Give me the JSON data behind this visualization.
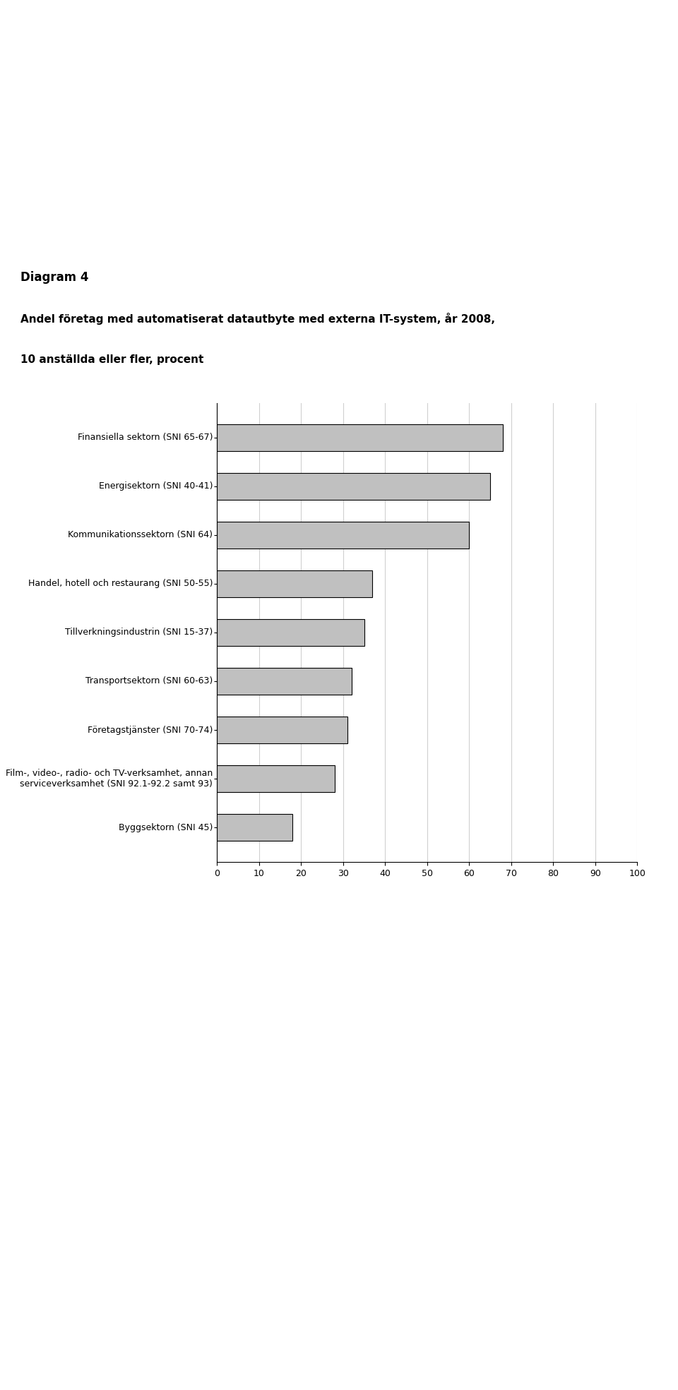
{
  "title_line1": "Diagram 4",
  "title_line2": "Andel företag med automatiserat datautbyte med externa IT-system, år 2008,",
  "title_line3": "10 anställda eller fler, procent",
  "categories": [
    "Finansiella sektorn (SNI 65-67)",
    "Energisektorn (SNI 40-41)",
    "Kommunikationssektorn (SNI 64)",
    "Handel, hotell och restaurang (SNI 50-55)",
    "Tillverkningsindustrin (SNI 15-37)",
    "Transportsektorn (SNI 60-63)",
    "Företagstjänster (SNI 70-74)",
    "Film-, video-, radio- och TV-verksamhet, annan\nserviceverksamhet (SNI 92.1-92.2 samt 93)",
    "Byggsektorn (SNI 45)"
  ],
  "values": [
    68,
    65,
    60,
    37,
    35,
    32,
    31,
    28,
    18
  ],
  "bar_color": "#c0c0c0",
  "bar_edgecolor": "#000000",
  "xlim": [
    0,
    100
  ],
  "xticks": [
    0,
    10,
    20,
    30,
    40,
    50,
    60,
    70,
    80,
    90,
    100
  ],
  "grid_color": "#ffffff",
  "background_color": "#ffffff",
  "plot_bg_color": "#ffffff",
  "title_fontsize": 11,
  "label_fontsize": 9,
  "tick_fontsize": 9
}
